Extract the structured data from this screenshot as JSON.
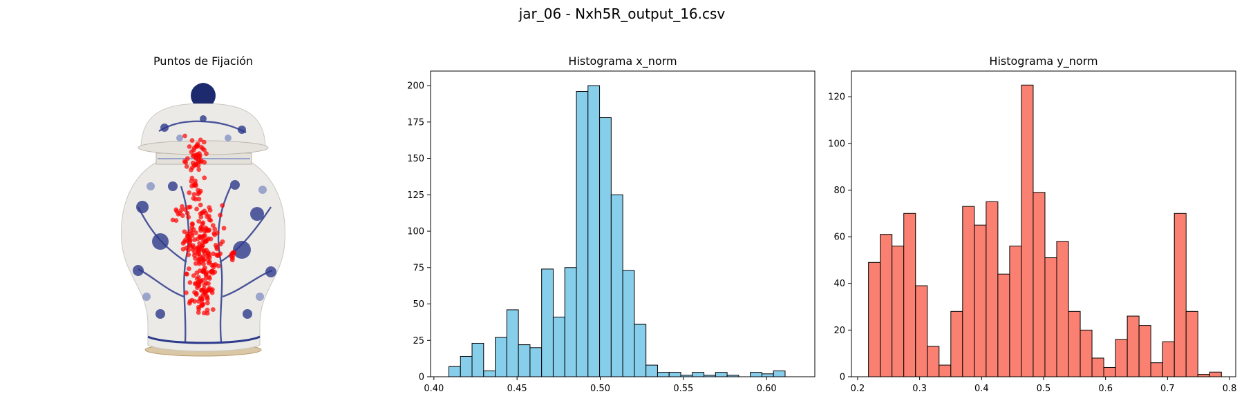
{
  "figure": {
    "suptitle": "jar_06 - Nxh5R_output_16.csv"
  },
  "colors": {
    "hist_x": "#87ceeb",
    "hist_y": "#fa8072",
    "points": "#ff0000",
    "edge": "#000000",
    "vase_body": "#eceae6",
    "vase_blue": "#2e3a8c"
  },
  "chart_data": [
    {
      "type": "scatter",
      "title": "Puntos de Fijación",
      "background_image": "blue-and-white porcelain ginger jar",
      "axis": "off",
      "note_points": "dense cluster of red fixation points along the vertical center of the jar"
    },
    {
      "type": "bar",
      "title": "Histograma x_norm",
      "xlim": [
        0.398,
        0.629
      ],
      "ylim": [
        0,
        210
      ],
      "xticks": [
        "0.40",
        "0.45",
        "0.50",
        "0.55",
        "0.60"
      ],
      "xtick_values": [
        0.4,
        0.45,
        0.5,
        0.55,
        0.6
      ],
      "yticks": [
        "0",
        "25",
        "50",
        "75",
        "100",
        "125",
        "150",
        "175",
        "200"
      ],
      "ytick_values": [
        0,
        25,
        50,
        75,
        100,
        125,
        150,
        175,
        200
      ],
      "bin_start": 0.409,
      "bin_width": 0.00697,
      "values": [
        7,
        14,
        23,
        4,
        27,
        46,
        22,
        20,
        74,
        41,
        75,
        196,
        200,
        178,
        125,
        73,
        36,
        8,
        3,
        3,
        1,
        3,
        1,
        3,
        1,
        0,
        3,
        2,
        4
      ]
    },
    {
      "type": "bar",
      "title": "Histograma y_norm",
      "xlim": [
        0.19,
        0.81
      ],
      "ylim": [
        0,
        131
      ],
      "xticks": [
        "0.2",
        "0.3",
        "0.4",
        "0.5",
        "0.6",
        "0.7",
        "0.8"
      ],
      "xtick_values": [
        0.2,
        0.3,
        0.4,
        0.5,
        0.6,
        0.7,
        0.8
      ],
      "yticks": [
        "0",
        "20",
        "40",
        "60",
        "80",
        "100",
        "120"
      ],
      "ytick_values": [
        0,
        20,
        40,
        60,
        80,
        100,
        120
      ],
      "bin_start": 0.2175,
      "bin_width": 0.01898,
      "values": [
        49,
        61,
        56,
        70,
        39,
        13,
        5,
        28,
        73,
        65,
        75,
        44,
        56,
        125,
        79,
        51,
        58,
        28,
        20,
        8,
        4,
        16,
        26,
        22,
        6,
        15,
        70,
        28,
        1,
        2
      ]
    }
  ]
}
